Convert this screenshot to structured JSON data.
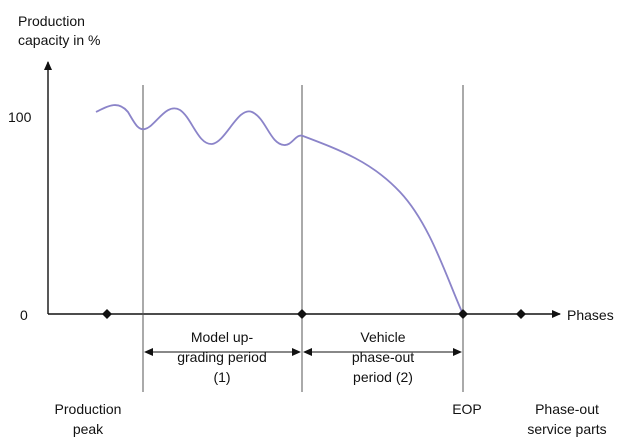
{
  "y_axis": {
    "title_line1": "Production",
    "title_line2": "capacity in %",
    "tick_100": "100",
    "tick_0": "0"
  },
  "x_axis": {
    "label": "Phases"
  },
  "periods": {
    "model_upgrading": {
      "line1": "Model up-",
      "line2": "grading period",
      "line3": "(1)"
    },
    "phase_out": {
      "line1": "Vehicle",
      "line2": "phase-out",
      "line3": "period (2)"
    }
  },
  "milestones": {
    "production_peak": {
      "line1": "Production",
      "line2": "peak"
    },
    "eop": {
      "line1": "EOP"
    },
    "phase_out_service": {
      "line1": "Phase-out",
      "line2": "service parts"
    }
  },
  "colors": {
    "curve": "#8b84c9",
    "axis": "#111111",
    "divider": "#555555"
  }
}
